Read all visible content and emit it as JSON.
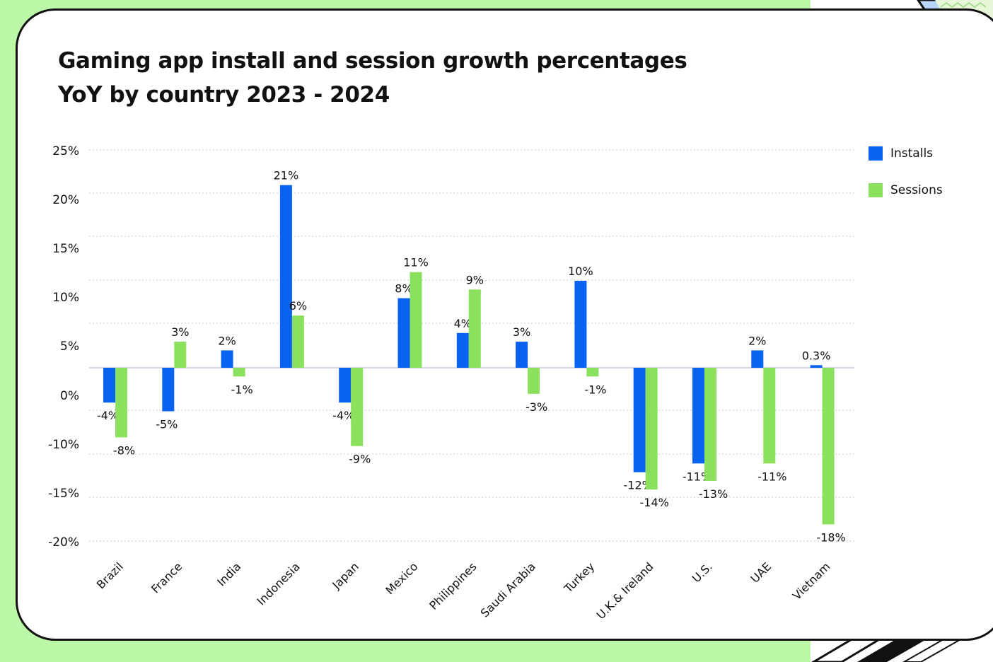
{
  "title_lines": [
    "Gaming app install and session growth percentages",
    "YoY by country 2023 - 2024"
  ],
  "colors": {
    "installs": "#0a63f0",
    "sessions": "#8be05d",
    "background": "#bdf8a8"
  },
  "chart_data": {
    "type": "bar",
    "title": "Gaming app install and session growth percentages YoY by country 2023 - 2024",
    "categories": [
      "Brazil",
      "France",
      "India",
      "Indonesia",
      "Japan",
      "Mexico",
      "Philippines",
      "Saudi Arabia",
      "Turkey",
      "U.K.& Ireland",
      "U.S.",
      "UAE",
      "Vietnam"
    ],
    "series": [
      {
        "name": "Installs",
        "values": [
          -4,
          -5,
          2,
          21,
          -4,
          8,
          4,
          3,
          10,
          -12,
          -11,
          2,
          0.3
        ],
        "labels": [
          "-4%",
          "-5%",
          "2%",
          "21%",
          "-4%",
          "8%",
          "4%",
          "3%",
          "10%",
          "-12%",
          "-11%",
          "2%",
          "0.3%"
        ]
      },
      {
        "name": "Sessions",
        "values": [
          -8,
          3,
          -1,
          6,
          -9,
          11,
          9,
          -3,
          -1,
          -14,
          -13,
          -11,
          -18
        ],
        "labels": [
          "-8%",
          "3%",
          "-1%",
          "6%",
          "-9%",
          "11%",
          "9%",
          "-3%",
          "-1%",
          "-14%",
          "-13%",
          "-11%",
          "-18%"
        ]
      }
    ],
    "y_ticks": [
      "25%",
      "20%",
      "15%",
      "10%",
      "5%",
      "0%",
      "-10%",
      "-15%",
      "-20%"
    ],
    "ylim": [
      -20,
      25
    ],
    "legend_position": "top-right",
    "grid": "horizontal dotted"
  }
}
